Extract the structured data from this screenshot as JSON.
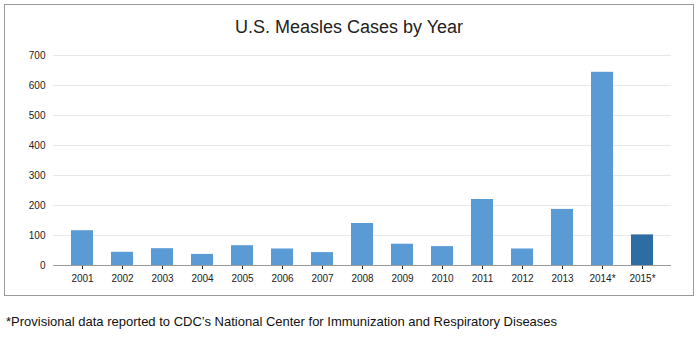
{
  "chart_data": {
    "type": "bar",
    "title": "U.S. Measles Cases by Year",
    "categories": [
      "2001",
      "2002",
      "2003",
      "2004",
      "2005",
      "2006",
      "2007",
      "2008",
      "2009",
      "2010",
      "2011",
      "2012",
      "2013",
      "2014*",
      "2015*"
    ],
    "values": [
      116,
      44,
      56,
      37,
      66,
      55,
      43,
      140,
      71,
      63,
      220,
      55,
      187,
      644,
      102
    ],
    "colors": [
      "#5b9bd5",
      "#5b9bd5",
      "#5b9bd5",
      "#5b9bd5",
      "#5b9bd5",
      "#5b9bd5",
      "#5b9bd5",
      "#5b9bd5",
      "#5b9bd5",
      "#5b9bd5",
      "#5b9bd5",
      "#5b9bd5",
      "#5b9bd5",
      "#5b9bd5",
      "#2e6da4"
    ],
    "ylim": [
      0,
      700
    ],
    "yticks": [
      0,
      100,
      200,
      300,
      400,
      500,
      600,
      700
    ],
    "grid": true,
    "annotations": [
      "*Provisional data reported to CDC’s National Center for Immunization and Respiratory Diseases"
    ]
  }
}
